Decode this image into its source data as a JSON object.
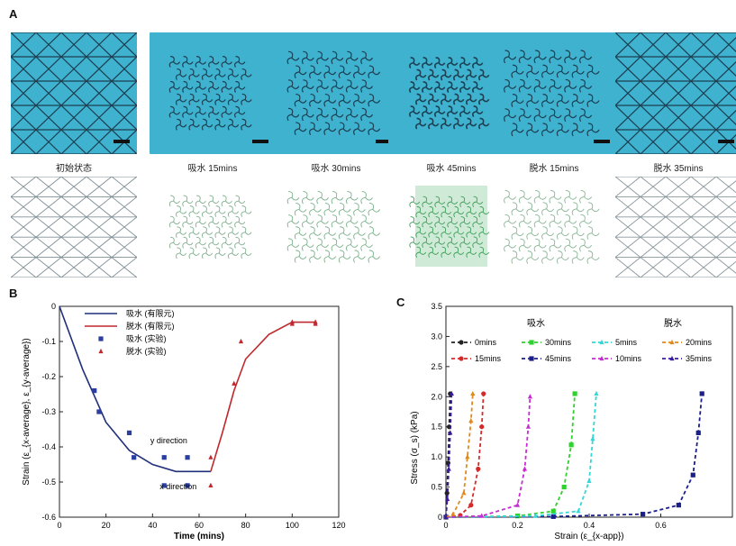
{
  "panelA": {
    "letter": "A",
    "stages": [
      {
        "label": "初始状态",
        "tint": "#7f8f96"
      },
      {
        "label": "吸水 15mins",
        "tint": "#7fae8e"
      },
      {
        "label": "吸水 30mins",
        "tint": "#79b18a"
      },
      {
        "label": "吸水 45mins",
        "tint": "#3f9e5a"
      },
      {
        "label": "脱水 15mins",
        "tint": "#89b596"
      },
      {
        "label": "脱水 35mins",
        "tint": "#8a979c"
      }
    ]
  },
  "panelB": {
    "letter": "B",
    "chart_data": {
      "type": "line",
      "xlabel": "Time (mins)",
      "ylabel": "Strain (ε_{x-average}, ε_{y-average})",
      "xlim": [
        0,
        120
      ],
      "ylim": [
        -0.6,
        0
      ],
      "xticks": [
        "0",
        "20",
        "40",
        "60",
        "80",
        "100",
        "120"
      ],
      "yticks": [
        "0",
        "-0.1",
        "-0.2",
        "-0.3",
        "-0.4",
        "-0.5",
        "-0.6"
      ],
      "annotations": [
        "y direction",
        "x direction"
      ],
      "legend_position": "top-left",
      "series": [
        {
          "name": "吸水 (有限元)",
          "kind": "line",
          "color": "#1f2f7a",
          "points": [
            [
              0,
              0
            ],
            [
              10,
              -0.18
            ],
            [
              20,
              -0.33
            ],
            [
              30,
              -0.41
            ],
            [
              40,
              -0.45
            ],
            [
              50,
              -0.47
            ],
            [
              65,
              -0.47
            ]
          ]
        },
        {
          "name": "脱水 (有限元)",
          "kind": "line",
          "color": "#c0282d",
          "points": [
            [
              65,
              -0.47
            ],
            [
              70,
              -0.36
            ],
            [
              75,
              -0.24
            ],
            [
              80,
              -0.15
            ],
            [
              90,
              -0.08
            ],
            [
              100,
              -0.045
            ],
            [
              110,
              -0.045
            ]
          ]
        },
        {
          "name": "吸水 (实验)",
          "kind": "square",
          "color": "#2b3fa0",
          "points": [
            [
              15,
              -0.24
            ],
            [
              17,
              -0.3
            ],
            [
              30,
              -0.36
            ],
            [
              32,
              -0.43
            ],
            [
              45,
              -0.43
            ],
            [
              45,
              -0.51
            ],
            [
              55,
              -0.43
            ],
            [
              55,
              -0.51
            ]
          ]
        },
        {
          "name": "脱水 (实验)",
          "kind": "triangle",
          "color": "#c0282d",
          "points": [
            [
              65,
              -0.43
            ],
            [
              65,
              -0.51
            ],
            [
              75,
              -0.22
            ],
            [
              78,
              -0.1
            ],
            [
              100,
              -0.045
            ],
            [
              100,
              -0.05
            ],
            [
              110,
              -0.045
            ],
            [
              110,
              -0.05
            ]
          ]
        }
      ]
    }
  },
  "panelC": {
    "letter": "C",
    "chart_data": {
      "type": "line",
      "xlabel": "Strain (ε_{x-app})",
      "ylabel": "Stress (σ_s) (kPa)",
      "xlim": [
        0,
        0.8
      ],
      "ylim": [
        0,
        3.5
      ],
      "xticks": [
        "0",
        "0.2",
        "0.4",
        "0.6"
      ],
      "yticks": [
        "0",
        "0.5",
        "1.0",
        "1.5",
        "2.0",
        "2.5",
        "3.0",
        "3.5"
      ],
      "group_labels": [
        "吸水",
        "脱水"
      ],
      "legend_position": "top",
      "series": [
        {
          "name": "0mins",
          "color": "#222222",
          "marker": "circle",
          "points": [
            [
              0,
              0
            ],
            [
              0.003,
              0.4
            ],
            [
              0.006,
              0.9
            ],
            [
              0.009,
              1.5
            ],
            [
              0.012,
              2.05
            ]
          ]
        },
        {
          "name": "15mins",
          "color": "#d62a2a",
          "marker": "circle",
          "points": [
            [
              0,
              0
            ],
            [
              0.04,
              0.03
            ],
            [
              0.07,
              0.2
            ],
            [
              0.09,
              0.8
            ],
            [
              0.1,
              1.5
            ],
            [
              0.105,
              2.05
            ]
          ]
        },
        {
          "name": "30mins",
          "color": "#2fd12f",
          "marker": "square",
          "points": [
            [
              0,
              0
            ],
            [
              0.2,
              0.02
            ],
            [
              0.3,
              0.1
            ],
            [
              0.33,
              0.5
            ],
            [
              0.35,
              1.2
            ],
            [
              0.36,
              2.05
            ]
          ]
        },
        {
          "name": "45mins",
          "color": "#1a1f8a",
          "marker": "square",
          "points": [
            [
              0,
              0
            ],
            [
              0.3,
              0.01
            ],
            [
              0.55,
              0.05
            ],
            [
              0.65,
              0.2
            ],
            [
              0.69,
              0.7
            ],
            [
              0.705,
              1.4
            ],
            [
              0.715,
              2.05
            ]
          ]
        },
        {
          "name": "5mins",
          "color": "#34d6d6",
          "marker": "triangle",
          "points": [
            [
              0,
              0
            ],
            [
              0.25,
              0.02
            ],
            [
              0.37,
              0.1
            ],
            [
              0.4,
              0.6
            ],
            [
              0.41,
              1.3
            ],
            [
              0.42,
              2.05
            ]
          ]
        },
        {
          "name": "10mins",
          "color": "#c62dd0",
          "marker": "triangle",
          "points": [
            [
              0,
              0
            ],
            [
              0.1,
              0.02
            ],
            [
              0.2,
              0.2
            ],
            [
              0.22,
              0.8
            ],
            [
              0.23,
              1.5
            ],
            [
              0.235,
              2.0
            ]
          ]
        },
        {
          "name": "20mins",
          "color": "#e08a1e",
          "marker": "triangle",
          "points": [
            [
              0,
              0
            ],
            [
              0.02,
              0.05
            ],
            [
              0.05,
              0.4
            ],
            [
              0.06,
              1.0
            ],
            [
              0.07,
              1.6
            ],
            [
              0.075,
              2.05
            ]
          ]
        },
        {
          "name": "35mins",
          "color": "#3a1aa0",
          "marker": "triangle",
          "points": [
            [
              0,
              0
            ],
            [
              0.004,
              0.3
            ],
            [
              0.008,
              0.8
            ],
            [
              0.012,
              1.4
            ],
            [
              0.016,
              2.05
            ]
          ]
        }
      ]
    }
  }
}
